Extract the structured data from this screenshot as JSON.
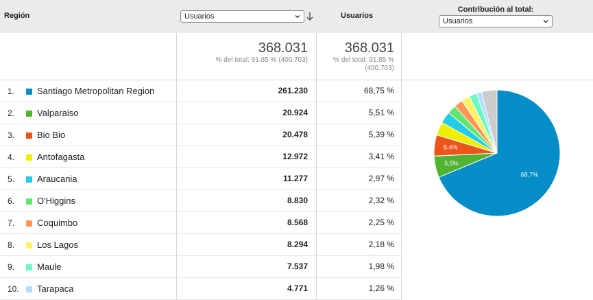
{
  "header": {
    "region_label": "Región",
    "primary_select": "Usuarios",
    "metric_label": "Usuarios",
    "contribution_title": "Contribución al total:",
    "contribution_select": "Usuarios"
  },
  "totals": {
    "col1_value": "368.031",
    "col1_note": "% del total: 91,85 % (400.703)",
    "col2_value": "368.031",
    "col2_note_line1": "% del total: 91,85 %",
    "col2_note_line2": "(400.703)"
  },
  "rows": [
    {
      "index": "1.",
      "name": "Santiago Metropolitan Region",
      "value": "261.230",
      "percent": "68,75 %",
      "color": "#058dc7"
    },
    {
      "index": "2.",
      "name": "Valparaiso",
      "value": "20.924",
      "percent": "5,51 %",
      "color": "#50b432"
    },
    {
      "index": "3.",
      "name": "Bio Bio",
      "value": "20.478",
      "percent": "5,39 %",
      "color": "#ed561b"
    },
    {
      "index": "4.",
      "name": "Antofagasta",
      "value": "12.972",
      "percent": "3,41 %",
      "color": "#edef00"
    },
    {
      "index": "5.",
      "name": "Araucania",
      "value": "11.277",
      "percent": "2,97 %",
      "color": "#24cbe5"
    },
    {
      "index": "6.",
      "name": "O'Higgins",
      "value": "8.830",
      "percent": "2,32 %",
      "color": "#64e572"
    },
    {
      "index": "7.",
      "name": "Coquimbo",
      "value": "8.568",
      "percent": "2,25 %",
      "color": "#ff9655"
    },
    {
      "index": "8.",
      "name": "Los Lagos",
      "value": "8.294",
      "percent": "2,18 %",
      "color": "#fff263"
    },
    {
      "index": "9.",
      "name": "Maule",
      "value": "7.537",
      "percent": "1,98 %",
      "color": "#6af9c4"
    },
    {
      "index": "10.",
      "name": "Tarapaca",
      "value": "4.771",
      "percent": "1,26 %",
      "color": "#b2deff"
    }
  ],
  "chart_data": {
    "type": "pie",
    "slices": [
      {
        "label": "Santiago Metropolitan Region",
        "value": 68.75,
        "color": "#058dc7",
        "data_label": "68,7%"
      },
      {
        "label": "Valparaiso",
        "value": 5.51,
        "color": "#50b432",
        "data_label": "5,5%"
      },
      {
        "label": "Bio Bio",
        "value": 5.39,
        "color": "#ed561b",
        "data_label": "5,4%"
      },
      {
        "label": "Antofagasta",
        "value": 3.41,
        "color": "#edef00",
        "data_label": ""
      },
      {
        "label": "Araucania",
        "value": 2.97,
        "color": "#24cbe5",
        "data_label": ""
      },
      {
        "label": "O'Higgins",
        "value": 2.32,
        "color": "#64e572",
        "data_label": ""
      },
      {
        "label": "Coquimbo",
        "value": 2.25,
        "color": "#ff9655",
        "data_label": ""
      },
      {
        "label": "Los Lagos",
        "value": 2.18,
        "color": "#fff263",
        "data_label": ""
      },
      {
        "label": "Maule",
        "value": 1.98,
        "color": "#6af9c4",
        "data_label": ""
      },
      {
        "label": "Tarapaca",
        "value": 1.26,
        "color": "#b2deff",
        "data_label": ""
      },
      {
        "label": "",
        "value": 3.98,
        "color": "#cccccc",
        "data_label": ""
      }
    ]
  }
}
